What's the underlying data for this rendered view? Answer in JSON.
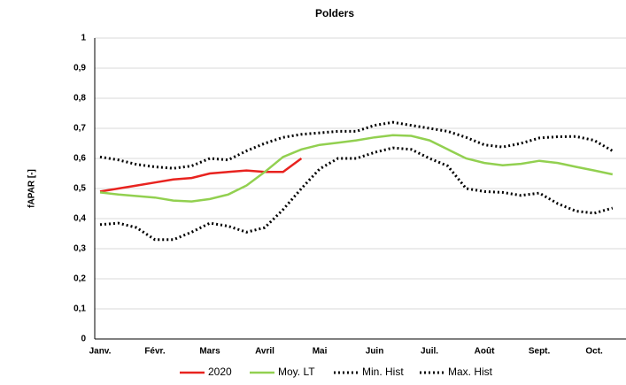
{
  "chart_data": {
    "type": "line",
    "title": "Polders",
    "y_label": "fAPAR [-]",
    "categories": [
      "Janv.",
      null,
      null,
      "Févr.",
      null,
      null,
      "Mars",
      null,
      null,
      "Avril",
      null,
      null,
      "Mai",
      null,
      null,
      "Juin",
      null,
      null,
      "Juil.",
      null,
      null,
      "Août",
      null,
      null,
      "Sept.",
      null,
      null,
      "Oct.",
      null
    ],
    "series": [
      {
        "name": "2020",
        "color": "#e8231f",
        "style": "solid",
        "values": [
          0.49,
          0.5,
          0.51,
          0.52,
          0.53,
          0.535,
          0.55,
          0.555,
          0.56,
          0.555,
          0.555,
          0.6,
          null,
          null,
          null,
          null,
          null,
          null,
          null,
          null,
          null,
          null,
          null,
          null,
          null,
          null,
          null,
          null,
          null
        ]
      },
      {
        "name": "Moy. LT",
        "color": "#92d050",
        "style": "solid",
        "values": [
          0.487,
          0.48,
          0.475,
          0.47,
          0.46,
          0.457,
          0.465,
          0.48,
          0.51,
          0.555,
          0.605,
          0.63,
          0.645,
          0.652,
          0.66,
          0.67,
          0.677,
          0.675,
          0.66,
          0.63,
          0.6,
          0.585,
          0.577,
          0.582,
          0.592,
          0.585,
          0.572,
          0.56,
          0.547
        ]
      },
      {
        "name": "Min. Hist",
        "color": "#000000",
        "style": "dotted",
        "values": [
          0.38,
          0.385,
          0.37,
          0.33,
          0.33,
          0.355,
          0.385,
          0.375,
          0.355,
          0.37,
          0.43,
          0.5,
          0.565,
          0.6,
          0.6,
          0.62,
          0.635,
          0.63,
          0.6,
          0.575,
          0.5,
          0.49,
          0.487,
          0.477,
          0.485,
          0.45,
          0.425,
          0.418,
          0.435
        ]
      },
      {
        "name": "Max. Hist",
        "color": "#000000",
        "style": "dotted",
        "values": [
          0.605,
          0.595,
          0.58,
          0.572,
          0.567,
          0.575,
          0.6,
          0.595,
          0.625,
          0.65,
          0.67,
          0.68,
          0.685,
          0.69,
          0.69,
          0.71,
          0.72,
          0.71,
          0.7,
          0.69,
          0.67,
          0.645,
          0.638,
          0.65,
          0.668,
          0.672,
          0.673,
          0.66,
          0.625
        ]
      }
    ],
    "ylim": [
      0,
      1
    ],
    "yticks": [
      0,
      {
        "value": 0.1,
        "label": "0,1"
      },
      {
        "value": 0.2,
        "label": "0,2"
      },
      {
        "value": 0.3,
        "label": "0,3"
      },
      {
        "value": 0.4,
        "label": "0,4"
      },
      {
        "value": 0.5,
        "label": "0,5"
      },
      {
        "value": 0.6,
        "label": "0,6"
      },
      {
        "value": 0.7,
        "label": "0,7"
      },
      {
        "value": 0.8,
        "label": "0,8"
      },
      {
        "value": 0.9,
        "label": "0,9"
      },
      1
    ],
    "grid": true,
    "legend": "bottom"
  }
}
